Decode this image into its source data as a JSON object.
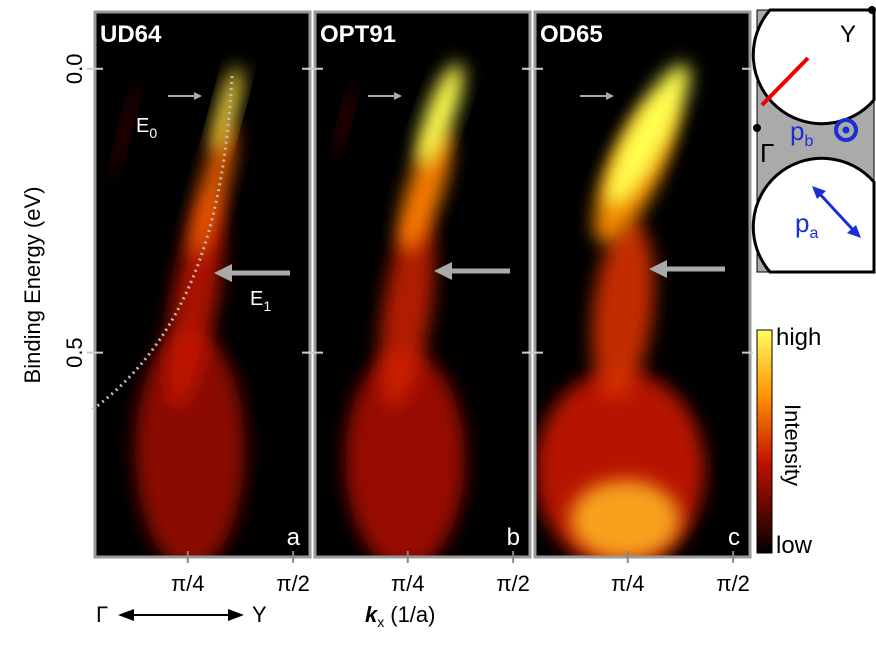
{
  "chart_data": [
    {
      "type": "heatmap",
      "title": "UD64",
      "panel": "a",
      "xlim": [
        0.03,
        0.54
      ],
      "xticks": [
        {
          "value": 0.25,
          "label": "π/4"
        },
        {
          "value": 0.5,
          "label": "π/2"
        }
      ],
      "ylim": [
        -0.1,
        0.86
      ],
      "yticks": [
        {
          "value": 0,
          "label": "0.0"
        },
        {
          "value": 0.5,
          "label": "0.5"
        }
      ]
    },
    {
      "type": "heatmap",
      "title": "OPT91",
      "panel": "b",
      "xlim": [
        0.03,
        0.54
      ],
      "xticks": [
        {
          "value": 0.25,
          "label": "π/4"
        },
        {
          "value": 0.5,
          "label": "π/2"
        }
      ],
      "ylim": [
        -0.1,
        0.86
      ]
    },
    {
      "type": "heatmap",
      "title": "OD65",
      "panel": "c",
      "xlim": [
        0.03,
        0.54
      ],
      "xticks": [
        {
          "value": 0.25,
          "label": "π/4"
        },
        {
          "value": 0.5,
          "label": "π/2"
        }
      ],
      "ylim": [
        -0.1,
        0.86
      ]
    }
  ],
  "ylabel": "Binding Energy (eV)",
  "xlabel": {
    "symbol": "k",
    "subscript": "x",
    "unit": "(1/a)"
  },
  "direction": {
    "from": "Γ",
    "to": "Y"
  },
  "annotations": {
    "E0": {
      "text": "E",
      "subscript": "0"
    },
    "E1": {
      "text": "E",
      "subscript": "1"
    }
  },
  "colorbar": {
    "high": "high",
    "label": "Intensity",
    "low": "low"
  },
  "inset": {
    "Y": "Y",
    "Gamma": "Γ",
    "pb": {
      "text": "p",
      "subscript": "b"
    },
    "pa": {
      "text": "p",
      "subscript": "a"
    }
  }
}
